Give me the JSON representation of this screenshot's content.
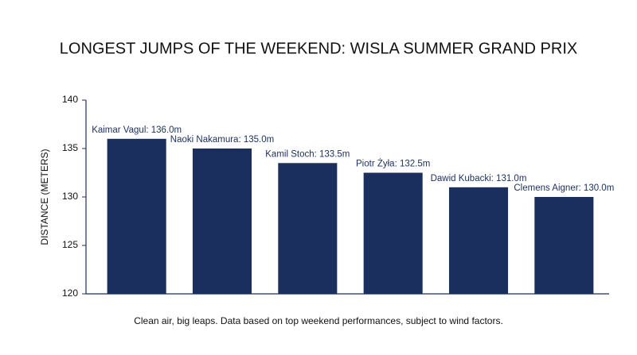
{
  "chart_data": {
    "type": "bar",
    "title": "LONGEST JUMPS OF THE WEEKEND: WISLA SUMMER GRAND PRIX",
    "subtitle": "Clean air, big leaps. Data based on top weekend performances, subject to wind factors.",
    "ylabel": "DISTANCE (METERS)",
    "values": [
      136.0,
      135.0,
      133.5,
      132.5,
      131.0,
      130.0
    ],
    "value_labels": [
      "Kaimar Vagul: 136.0m",
      "Naoki Nakamura: 135.0m",
      "Kamil Stoch: 133.5m",
      "Piotr Żyła: 132.5m",
      "Dawid Kubacki: 131.0m",
      "Clemens Aigner: 130.0m"
    ],
    "color": "#1b2f5e",
    "ylim": [
      120,
      140
    ],
    "yticks": [
      120,
      125,
      130,
      135,
      140
    ],
    "grid": false
  }
}
